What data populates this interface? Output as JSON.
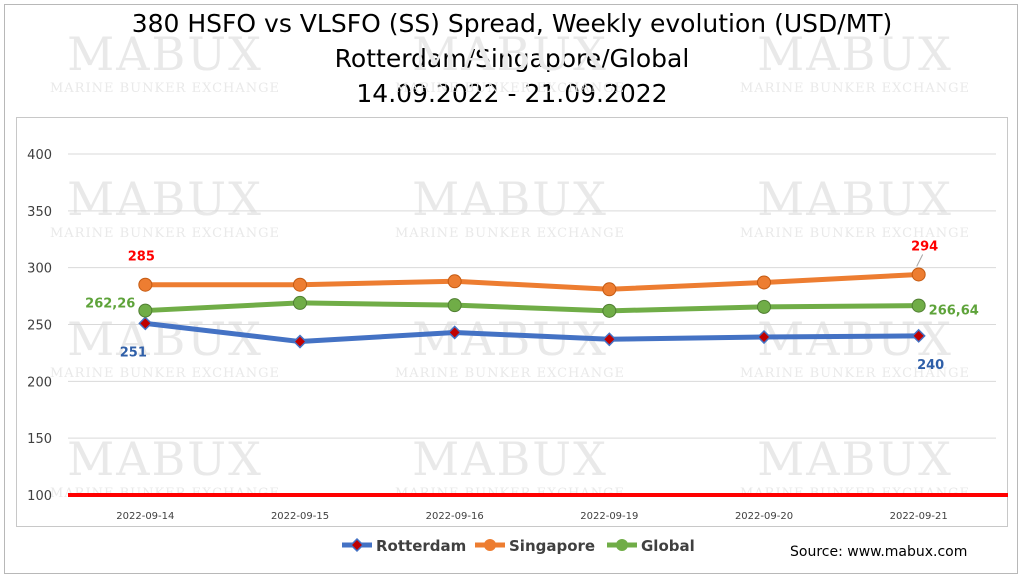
{
  "chart_data": {
    "type": "line",
    "title_lines": [
      "380 HSFO vs VLSFO (SS) Spread, Weekly evolution (USD/MT)",
      "Rotterdam/Singapore/Global",
      "14.09.2022 - 21.09.2022"
    ],
    "categories": [
      "2022-09-14",
      "2022-09-15",
      "2022-09-16",
      "2022-09-19",
      "2022-09-20",
      "2022-09-21"
    ],
    "yticks": [
      100,
      150,
      200,
      250,
      300,
      350,
      400
    ],
    "ytick_labels": [
      "100",
      "150",
      "200",
      "250",
      "300",
      "350",
      "400"
    ],
    "ylim": [
      100,
      400
    ],
    "grid": true,
    "legend_position": "bottom",
    "series": [
      {
        "name": "Rotterdam",
        "color": "#4472c4",
        "marker": "diamond",
        "marker_fill": "#c00000",
        "values": [
          251,
          235,
          243,
          237,
          239,
          240
        ],
        "point_labels": [
          "251",
          "",
          "",
          "",
          "",
          "240"
        ]
      },
      {
        "name": "Singapore",
        "color": "#ed7d31",
        "marker": "circle",
        "values": [
          285,
          285,
          288,
          281,
          287,
          294
        ],
        "point_labels": [
          "285",
          "",
          "",
          "",
          "",
          "294"
        ]
      },
      {
        "name": "Global",
        "color": "#70ad47",
        "marker": "circle",
        "values": [
          262.26,
          269,
          267,
          262,
          265.5,
          266.64
        ],
        "point_labels": [
          "262,26",
          "",
          "",
          "",
          "",
          "266,64"
        ]
      }
    ],
    "reference_line": {
      "value": 100,
      "color": "#ff0000"
    },
    "label_colors": {
      "Rotterdam": "#2f5fa8",
      "Singapore": "#ff0000",
      "Global": "#5ea33a"
    },
    "watermark": {
      "main": "MABUX",
      "sub": "MARINE BUNKER EXCHANGE"
    }
  },
  "source": "Source: www.mabux.com"
}
